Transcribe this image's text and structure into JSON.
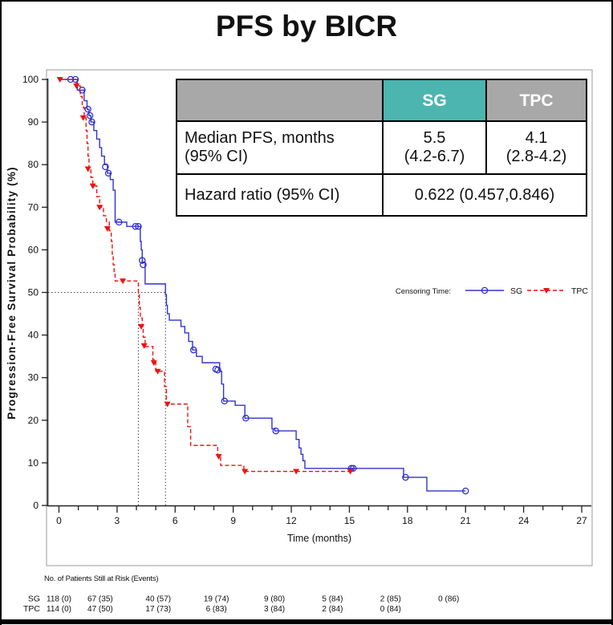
{
  "page": {
    "title": "PFS by BICR"
  },
  "stats_table": {
    "header": {
      "sg": "SG",
      "tpc": "TPC"
    },
    "median_row": {
      "label_line1": "Median PFS, months",
      "label_line2": "(95% CI)",
      "sg_line1": "5.5",
      "sg_line2": "(4.2-6.7)",
      "tpc_line1": "4.1",
      "tpc_line2": "(2.8-4.2)"
    },
    "hazard_row": {
      "label": "Hazard ratio (95% CI)",
      "value": "0.622 (0.457,0.846)"
    },
    "colors": {
      "sg_header_bg": "#4cb5b0",
      "tpc_header_bg": "#a8a8a8",
      "empty_header_bg": "#a8a8a8",
      "header_text": "#ffffff"
    }
  },
  "chart_data": {
    "type": "line",
    "subtype": "kaplan-meier-step",
    "title": "PFS by BICR",
    "xlabel": "Time (months)",
    "ylabel": "Progression-Free Survival Probability (%)",
    "xlim": [
      0,
      27.5
    ],
    "ylim": [
      0,
      100
    ],
    "xticks_major": [
      0,
      3,
      6,
      9,
      12,
      15,
      18,
      21,
      24,
      27
    ],
    "xticks_minor_step": 1,
    "yticks": [
      0,
      10,
      20,
      30,
      40,
      50,
      60,
      70,
      80,
      90,
      100
    ],
    "grid": false,
    "legend": {
      "label": "Censoring Time:",
      "position": "right-middle"
    },
    "median_reference": {
      "y": 50,
      "x_values": [
        4.1,
        5.5
      ]
    },
    "series": [
      {
        "name": "SG",
        "color": "#3232cd",
        "style": "solid",
        "marker": "open-circle",
        "steps": [
          [
            0,
            100
          ],
          [
            0.95,
            97.5
          ],
          [
            1.3,
            95
          ],
          [
            1.45,
            93
          ],
          [
            1.55,
            91.5
          ],
          [
            1.65,
            90
          ],
          [
            1.8,
            88
          ],
          [
            1.95,
            86
          ],
          [
            2.1,
            84
          ],
          [
            2.2,
            82
          ],
          [
            2.35,
            80
          ],
          [
            2.5,
            78
          ],
          [
            2.65,
            76.5
          ],
          [
            2.8,
            74
          ],
          [
            2.9,
            66.5
          ],
          [
            3.5,
            65.5
          ],
          [
            4.2,
            62
          ],
          [
            4.25,
            60
          ],
          [
            4.3,
            57
          ],
          [
            4.45,
            52
          ],
          [
            5.5,
            49.5
          ],
          [
            5.55,
            47
          ],
          [
            5.6,
            45
          ],
          [
            5.7,
            43.5
          ],
          [
            6.3,
            42
          ],
          [
            6.5,
            40.5
          ],
          [
            6.7,
            38.5
          ],
          [
            6.9,
            36.5
          ],
          [
            7.1,
            35
          ],
          [
            7.4,
            33.5
          ],
          [
            8.3,
            31.5
          ],
          [
            8.4,
            28.5
          ],
          [
            8.5,
            24.5
          ],
          [
            9.1,
            23.5
          ],
          [
            9.6,
            20.5
          ],
          [
            11.0,
            18
          ],
          [
            11.15,
            17.5
          ],
          [
            12.25,
            15.5
          ],
          [
            12.4,
            13.5
          ],
          [
            12.5,
            12
          ],
          [
            12.6,
            10.5
          ],
          [
            12.7,
            8.7
          ],
          [
            17.8,
            6.6
          ],
          [
            19.0,
            3.4
          ]
        ],
        "end_time": 21.0,
        "censor_marks": [
          [
            0.6,
            100
          ],
          [
            0.85,
            100
          ],
          [
            1.2,
            97.5
          ],
          [
            1.5,
            93
          ],
          [
            1.6,
            91.5
          ],
          [
            1.7,
            90
          ],
          [
            2.4,
            79.5
          ],
          [
            2.55,
            78
          ],
          [
            3.1,
            66.5
          ],
          [
            3.95,
            65.5
          ],
          [
            4.1,
            65.5
          ],
          [
            4.3,
            57.5
          ],
          [
            4.35,
            56.5
          ],
          [
            6.95,
            36.5
          ],
          [
            8.1,
            32
          ],
          [
            8.2,
            31.8
          ],
          [
            8.55,
            24.5
          ],
          [
            9.65,
            20.5
          ],
          [
            11.2,
            17.5
          ],
          [
            15.1,
            8.7
          ],
          [
            15.2,
            8.7
          ],
          [
            17.9,
            6.6
          ],
          [
            21.0,
            3.4
          ]
        ]
      },
      {
        "name": "TPC",
        "color": "#ee1111",
        "style": "dashed",
        "marker": "filled-triangle-down",
        "steps": [
          [
            0,
            100
          ],
          [
            0.9,
            98.5
          ],
          [
            1.1,
            96
          ],
          [
            1.2,
            93.5
          ],
          [
            1.3,
            91
          ],
          [
            1.4,
            88
          ],
          [
            1.45,
            85
          ],
          [
            1.5,
            82
          ],
          [
            1.55,
            79
          ],
          [
            1.65,
            77
          ],
          [
            1.75,
            75
          ],
          [
            1.95,
            72.5
          ],
          [
            2.1,
            70
          ],
          [
            2.3,
            68
          ],
          [
            2.45,
            66.5
          ],
          [
            2.6,
            64.5
          ],
          [
            2.7,
            62
          ],
          [
            2.75,
            59
          ],
          [
            2.8,
            56.5
          ],
          [
            2.85,
            54.5
          ],
          [
            2.9,
            52.7
          ],
          [
            4.1,
            49.5
          ],
          [
            4.15,
            46.5
          ],
          [
            4.2,
            44
          ],
          [
            4.3,
            42
          ],
          [
            4.35,
            39.5
          ],
          [
            4.45,
            37.3
          ],
          [
            4.85,
            34.2
          ],
          [
            5.0,
            31.5
          ],
          [
            5.45,
            27.9
          ],
          [
            5.55,
            23.8
          ],
          [
            6.65,
            18.5
          ],
          [
            6.8,
            14.1
          ],
          [
            8.2,
            11.5
          ],
          [
            8.35,
            9.4
          ],
          [
            9.55,
            8.0
          ]
        ],
        "end_time": 15.2,
        "censor_marks": [
          [
            0.05,
            100
          ],
          [
            0.9,
            98.5
          ],
          [
            1.25,
            91
          ],
          [
            1.5,
            79
          ],
          [
            1.75,
            75
          ],
          [
            2.1,
            70
          ],
          [
            2.5,
            65
          ],
          [
            3.3,
            52.7
          ],
          [
            4.25,
            42
          ],
          [
            4.4,
            37.5
          ],
          [
            4.9,
            33.5
          ],
          [
            5.1,
            31.5
          ],
          [
            5.6,
            23.8
          ],
          [
            8.25,
            11.5
          ],
          [
            9.6,
            8.0
          ],
          [
            12.25,
            8.0
          ],
          [
            15.05,
            8.0
          ]
        ]
      }
    ]
  },
  "risk_table": {
    "title": "No. of Patients Still at Risk (Events)",
    "time_points": [
      0,
      3,
      6,
      9,
      12,
      15,
      18,
      21
    ],
    "rows": [
      {
        "label": "SG",
        "values": [
          "118 (0)",
          "67 (35)",
          "40 (57)",
          "19 (74)",
          "9 (80)",
          "5 (84)",
          "2 (85)",
          "0 (86)"
        ]
      },
      {
        "label": "TPC",
        "values": [
          "114 (0)",
          "47 (50)",
          "17 (73)",
          "6 (83)",
          "3 (84)",
          "2 (84)",
          "0 (84)"
        ]
      }
    ]
  }
}
